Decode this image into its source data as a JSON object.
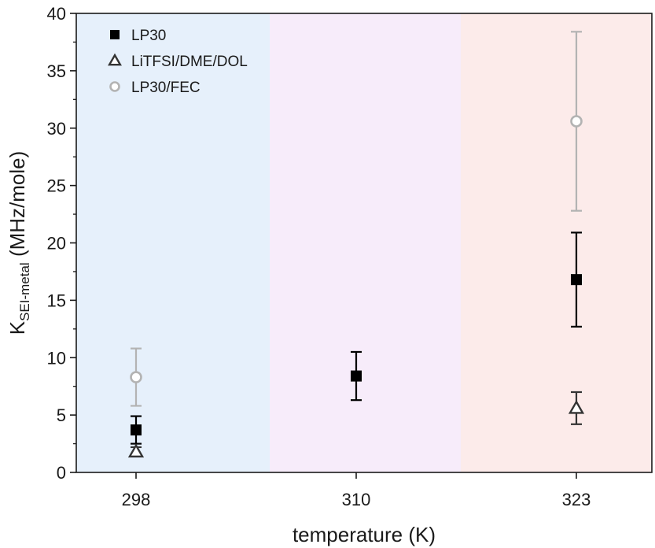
{
  "chart_data": {
    "type": "scatter",
    "categories": [
      "298",
      "310",
      "323"
    ],
    "xlabel": "temperature (K)",
    "ylabel": {
      "main": "K",
      "subscript": "SEI-metal",
      "unit": " (MHz/mole)"
    },
    "ylim": [
      0,
      40
    ],
    "yticks": [
      "0",
      "5",
      "10",
      "15",
      "20",
      "25",
      "30",
      "35",
      "40"
    ],
    "grid": false,
    "legend_position": "top-left",
    "background_bands": [
      {
        "category": "298",
        "color": "#e6f0fb"
      },
      {
        "category": "310",
        "color": "#f7ecfa"
      },
      {
        "category": "323",
        "color": "#fcebea"
      }
    ],
    "series": [
      {
        "name": "LP30",
        "marker": "filled-square",
        "color": "#000000",
        "points": [
          {
            "x": "298",
            "y": 3.7,
            "err": 1.2
          },
          {
            "x": "310",
            "y": 8.4,
            "err": 2.1
          },
          {
            "x": "323",
            "y": 16.8,
            "err": 4.1
          }
        ]
      },
      {
        "name": "LiTFSI/DME/DOL",
        "marker": "open-triangle",
        "color": "#333333",
        "points": [
          {
            "x": "298",
            "y": 1.8,
            "err": 0.4
          },
          {
            "x": "323",
            "y": 5.6,
            "err": 1.4
          }
        ]
      },
      {
        "name": "LP30/FEC",
        "marker": "open-circle",
        "color": "#b3b3b3",
        "points": [
          {
            "x": "298",
            "y": 8.3,
            "err": 2.5
          },
          {
            "x": "323",
            "y": 30.6,
            "err": 7.8
          }
        ]
      }
    ]
  }
}
